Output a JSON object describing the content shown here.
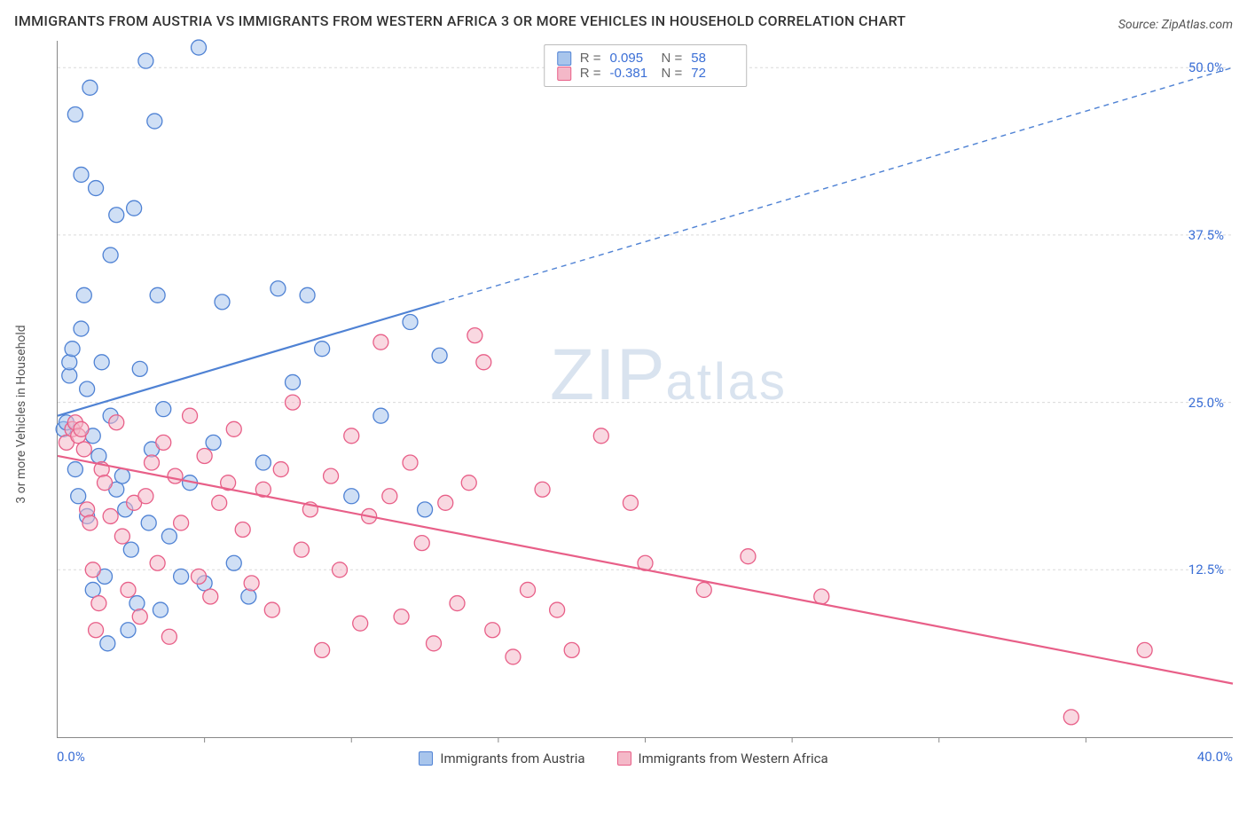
{
  "title": "IMMIGRANTS FROM AUSTRIA VS IMMIGRANTS FROM WESTERN AFRICA 3 OR MORE VEHICLES IN HOUSEHOLD CORRELATION CHART",
  "source_label": "Source: ZipAtlas.com",
  "ylabel": "3 or more Vehicles in Household",
  "watermark_main": "ZIP",
  "watermark_sub": "atlas",
  "chart": {
    "type": "scatter",
    "xlim": [
      0,
      40
    ],
    "ylim": [
      0,
      52
    ],
    "x_tick_labels": {
      "left": "0.0%",
      "right": "40.0%"
    },
    "y_tick_labels": [
      "12.5%",
      "25.0%",
      "37.5%",
      "50.0%"
    ],
    "y_tick_values": [
      12.5,
      25.0,
      37.5,
      50.0
    ],
    "x_minor_ticks": [
      5,
      10,
      15,
      20,
      25,
      30,
      35
    ],
    "grid_color": "#d9d9d9",
    "grid_dash": "3,3",
    "axis_color": "#888888",
    "background_color": "#ffffff",
    "marker_radius": 8.5,
    "marker_stroke_width": 1.3,
    "line_width": 2.2,
    "label_fontsize": 14,
    "tick_fontsize": 15,
    "title_fontsize": 16,
    "ytick_label_color": "#3b6fd6"
  },
  "series": [
    {
      "name": "Immigrants from Austria",
      "color_fill": "#a8c5ec",
      "color_stroke": "#4f82d4",
      "fill_opacity": 0.55,
      "R": "0.095",
      "N": "58",
      "trend": {
        "x1": 0,
        "y1": 24.0,
        "x2": 40,
        "y2": 50.0,
        "solid_until_x": 13.0
      },
      "points": [
        [
          0.2,
          23.0
        ],
        [
          0.3,
          23.5
        ],
        [
          0.4,
          27.0
        ],
        [
          0.4,
          28.0
        ],
        [
          0.5,
          29.0
        ],
        [
          0.6,
          46.5
        ],
        [
          0.6,
          20.0
        ],
        [
          0.7,
          18.0
        ],
        [
          0.8,
          30.5
        ],
        [
          0.8,
          42.0
        ],
        [
          0.9,
          33.0
        ],
        [
          1.0,
          16.5
        ],
        [
          1.0,
          26.0
        ],
        [
          1.1,
          48.5
        ],
        [
          1.2,
          11.0
        ],
        [
          1.2,
          22.5
        ],
        [
          1.3,
          41.0
        ],
        [
          1.4,
          21.0
        ],
        [
          1.5,
          28.0
        ],
        [
          1.6,
          12.0
        ],
        [
          1.7,
          7.0
        ],
        [
          1.8,
          36.0
        ],
        [
          1.8,
          24.0
        ],
        [
          2.0,
          18.5
        ],
        [
          2.0,
          39.0
        ],
        [
          2.2,
          19.5
        ],
        [
          2.3,
          17.0
        ],
        [
          2.4,
          8.0
        ],
        [
          2.5,
          14.0
        ],
        [
          2.6,
          39.5
        ],
        [
          2.7,
          10.0
        ],
        [
          2.8,
          27.5
        ],
        [
          3.0,
          50.5
        ],
        [
          3.1,
          16.0
        ],
        [
          3.2,
          21.5
        ],
        [
          3.3,
          46.0
        ],
        [
          3.4,
          33.0
        ],
        [
          3.5,
          9.5
        ],
        [
          3.6,
          24.5
        ],
        [
          3.8,
          15.0
        ],
        [
          4.2,
          12.0
        ],
        [
          4.5,
          19.0
        ],
        [
          4.8,
          51.5
        ],
        [
          5.0,
          11.5
        ],
        [
          5.3,
          22.0
        ],
        [
          5.6,
          32.5
        ],
        [
          6.0,
          13.0
        ],
        [
          6.5,
          10.5
        ],
        [
          7.0,
          20.5
        ],
        [
          7.5,
          33.5
        ],
        [
          8.0,
          26.5
        ],
        [
          8.5,
          33.0
        ],
        [
          9.0,
          29.0
        ],
        [
          10.0,
          18.0
        ],
        [
          11.0,
          24.0
        ],
        [
          12.0,
          31.0
        ],
        [
          12.5,
          17.0
        ],
        [
          13.0,
          28.5
        ]
      ]
    },
    {
      "name": "Immigrants from Western Africa",
      "color_fill": "#f4b8c8",
      "color_stroke": "#e85f88",
      "fill_opacity": 0.55,
      "R": "-0.381",
      "N": "72",
      "trend": {
        "x1": 0,
        "y1": 21.0,
        "x2": 40,
        "y2": 4.0,
        "solid_until_x": 40.0
      },
      "points": [
        [
          0.3,
          22.0
        ],
        [
          0.5,
          23.0
        ],
        [
          0.6,
          23.5
        ],
        [
          0.7,
          22.5
        ],
        [
          0.8,
          23.0
        ],
        [
          0.9,
          21.5
        ],
        [
          1.0,
          17.0
        ],
        [
          1.1,
          16.0
        ],
        [
          1.2,
          12.5
        ],
        [
          1.3,
          8.0
        ],
        [
          1.4,
          10.0
        ],
        [
          1.5,
          20.0
        ],
        [
          1.6,
          19.0
        ],
        [
          1.8,
          16.5
        ],
        [
          2.0,
          23.5
        ],
        [
          2.2,
          15.0
        ],
        [
          2.4,
          11.0
        ],
        [
          2.6,
          17.5
        ],
        [
          2.8,
          9.0
        ],
        [
          3.0,
          18.0
        ],
        [
          3.2,
          20.5
        ],
        [
          3.4,
          13.0
        ],
        [
          3.6,
          22.0
        ],
        [
          3.8,
          7.5
        ],
        [
          4.0,
          19.5
        ],
        [
          4.2,
          16.0
        ],
        [
          4.5,
          24.0
        ],
        [
          4.8,
          12.0
        ],
        [
          5.0,
          21.0
        ],
        [
          5.2,
          10.5
        ],
        [
          5.5,
          17.5
        ],
        [
          5.8,
          19.0
        ],
        [
          6.0,
          23.0
        ],
        [
          6.3,
          15.5
        ],
        [
          6.6,
          11.5
        ],
        [
          7.0,
          18.5
        ],
        [
          7.3,
          9.5
        ],
        [
          7.6,
          20.0
        ],
        [
          8.0,
          25.0
        ],
        [
          8.3,
          14.0
        ],
        [
          8.6,
          17.0
        ],
        [
          9.0,
          6.5
        ],
        [
          9.3,
          19.5
        ],
        [
          9.6,
          12.5
        ],
        [
          10.0,
          22.5
        ],
        [
          10.3,
          8.5
        ],
        [
          10.6,
          16.5
        ],
        [
          11.0,
          29.5
        ],
        [
          11.3,
          18.0
        ],
        [
          11.7,
          9.0
        ],
        [
          12.0,
          20.5
        ],
        [
          12.4,
          14.5
        ],
        [
          12.8,
          7.0
        ],
        [
          13.2,
          17.5
        ],
        [
          13.6,
          10.0
        ],
        [
          14.0,
          19.0
        ],
        [
          14.2,
          30.0
        ],
        [
          14.5,
          28.0
        ],
        [
          14.8,
          8.0
        ],
        [
          15.5,
          6.0
        ],
        [
          16.0,
          11.0
        ],
        [
          16.5,
          18.5
        ],
        [
          17.0,
          9.5
        ],
        [
          17.5,
          6.5
        ],
        [
          18.5,
          22.5
        ],
        [
          19.5,
          17.5
        ],
        [
          20.0,
          13.0
        ],
        [
          22.0,
          11.0
        ],
        [
          23.5,
          13.5
        ],
        [
          26.0,
          10.5
        ],
        [
          34.5,
          1.5
        ],
        [
          37.0,
          6.5
        ]
      ]
    }
  ],
  "stats_labels": {
    "R": "R =",
    "N": "N ="
  },
  "legend_position": "bottom-center"
}
